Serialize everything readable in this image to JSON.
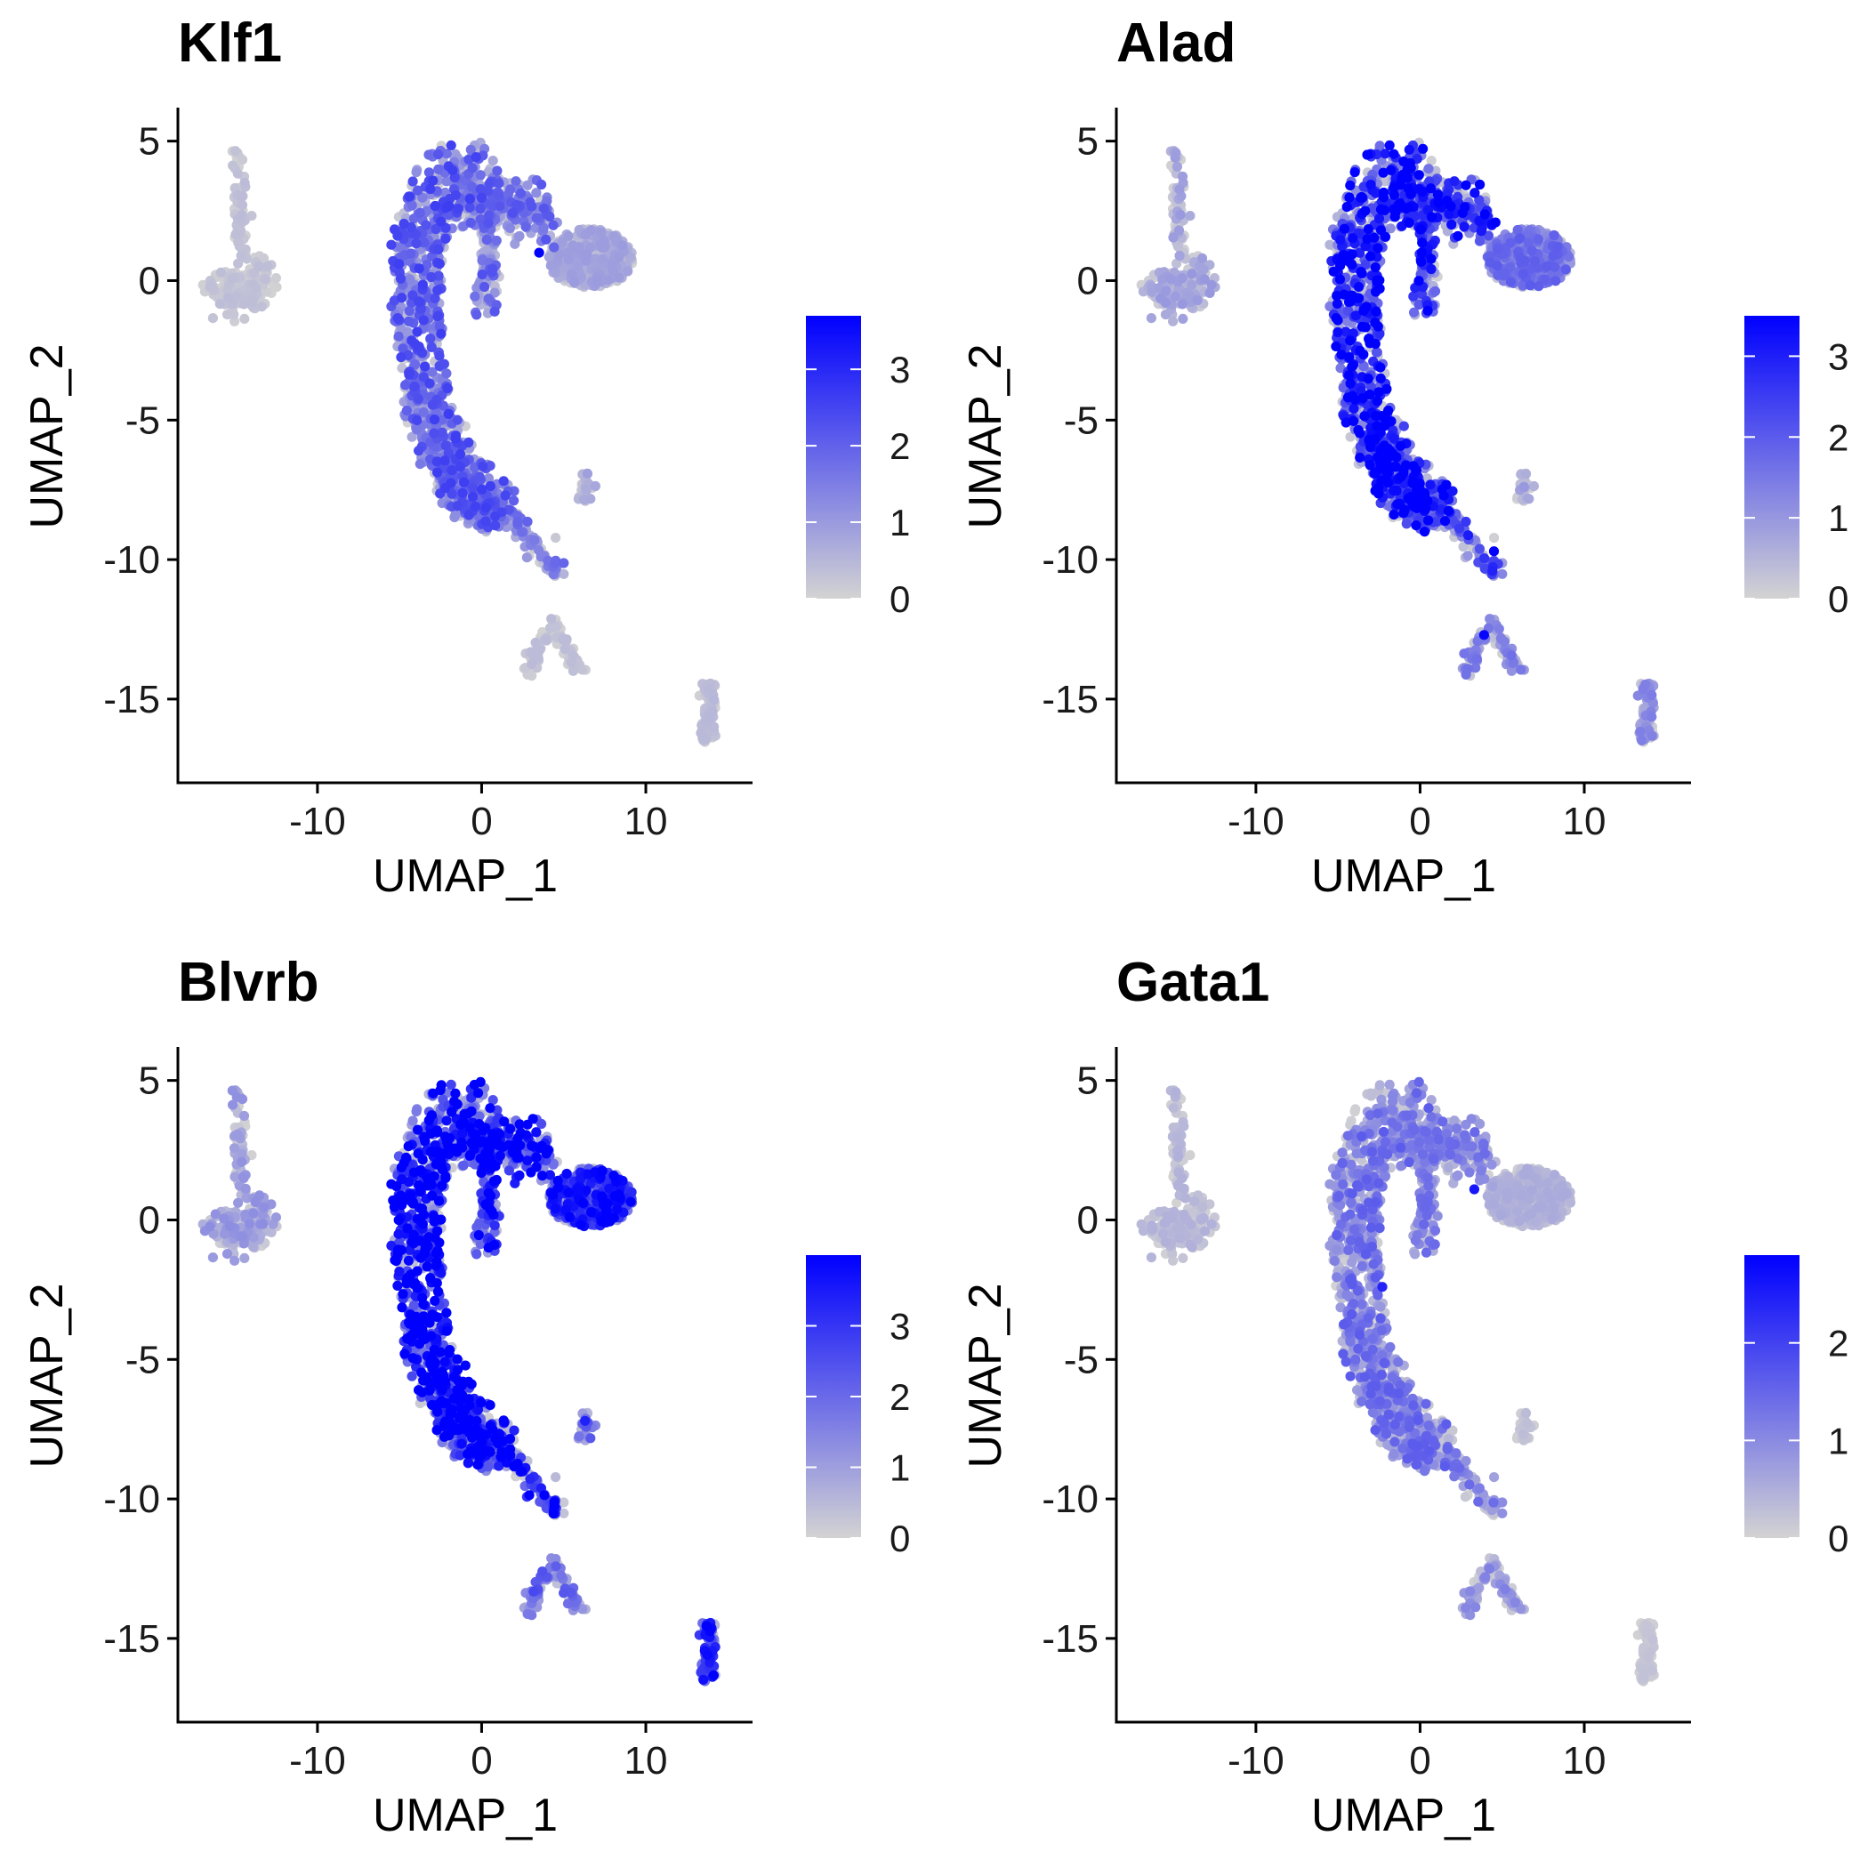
{
  "chart_data": [
    {
      "type": "scatter",
      "title": "Klf1",
      "xlabel": "UMAP_1",
      "ylabel": "UMAP_2",
      "xlim": [
        -18.5,
        16.5
      ],
      "ylim": [
        -18,
        6.2
      ],
      "xticks": [
        -10,
        0,
        10
      ],
      "yticks": [
        5,
        0,
        -5,
        -10,
        -15
      ],
      "color_range": [
        0,
        3.7
      ],
      "colorbar_ticks": [
        0,
        1,
        2,
        3
      ],
      "colors": {
        "low": "#d3d3d3",
        "high": "#0000ff"
      },
      "cluster_levels": {
        "left": 0.25,
        "curve": 1.6,
        "tail": 1.2,
        "hook": 1.4,
        "blob": 0.6,
        "smallsat": 0.6,
        "bottom": 0.25,
        "right": 0.3
      },
      "highlights": [
        {
          "x": 3.5,
          "y": 1.0,
          "v": 3.7
        }
      ]
    },
    {
      "type": "scatter",
      "title": "Alad",
      "xlabel": "UMAP_1",
      "ylabel": "UMAP_2",
      "xlim": [
        -18.5,
        16.5
      ],
      "ylim": [
        -18,
        6.2
      ],
      "xticks": [
        -10,
        0,
        10
      ],
      "yticks": [
        5,
        0,
        -5,
        -10,
        -15
      ],
      "color_range": [
        0,
        3.5
      ],
      "colorbar_ticks": [
        0,
        1,
        2,
        3
      ],
      "colors": {
        "low": "#d3d3d3",
        "high": "#0000ff"
      },
      "cluster_levels": {
        "left": 0.6,
        "curve": 2.5,
        "tail": 1.9,
        "hook": 2.3,
        "blob": 1.2,
        "smallsat": 0.6,
        "bottom": 1.0,
        "right": 0.9
      },
      "highlights": [
        {
          "x": 4.5,
          "y": -9.7,
          "v": 3.5
        },
        {
          "x": 3.9,
          "y": -12.7,
          "v": 3.4
        }
      ]
    },
    {
      "type": "scatter",
      "title": "Blvrb",
      "xlabel": "UMAP_1",
      "ylabel": "UMAP_2",
      "xlim": [
        -18.5,
        16.5
      ],
      "ylim": [
        -18,
        6.2
      ],
      "xticks": [
        -10,
        0,
        10
      ],
      "yticks": [
        5,
        0,
        -5,
        -10,
        -15
      ],
      "color_range": [
        0,
        4.0
      ],
      "colorbar_ticks": [
        0,
        1,
        2,
        3
      ],
      "colors": {
        "low": "#d3d3d3",
        "high": "#0000ff"
      },
      "cluster_levels": {
        "left": 0.8,
        "curve": 3.2,
        "tail": 2.8,
        "hook": 3.0,
        "blob": 2.5,
        "smallsat": 1.5,
        "bottom": 1.6,
        "right": 2.6
      },
      "highlights": [
        {
          "x": 6.3,
          "y": -7.2,
          "v": 3.4
        }
      ]
    },
    {
      "type": "scatter",
      "title": "Gata1",
      "xlabel": "UMAP_1",
      "ylabel": "UMAP_2",
      "xlim": [
        -18.5,
        16.5
      ],
      "ylim": [
        -18,
        6.2
      ],
      "xticks": [
        -10,
        0,
        10
      ],
      "yticks": [
        5,
        0,
        -5,
        -10,
        -15
      ],
      "color_range": [
        0,
        2.9
      ],
      "colorbar_ticks": [
        0,
        1,
        2
      ],
      "colors": {
        "low": "#d3d3d3",
        "high": "#0000ff"
      },
      "cluster_levels": {
        "left": 0.3,
        "curve": 1.0,
        "tail": 0.9,
        "hook": 0.9,
        "blob": 0.35,
        "smallsat": 0.2,
        "bottom": 0.7,
        "right": 0.15
      },
      "highlights": [
        {
          "x": 3.3,
          "y": 1.1,
          "v": 2.6
        },
        {
          "x": -2.3,
          "y": -2.4,
          "v": 2.4
        }
      ]
    }
  ]
}
